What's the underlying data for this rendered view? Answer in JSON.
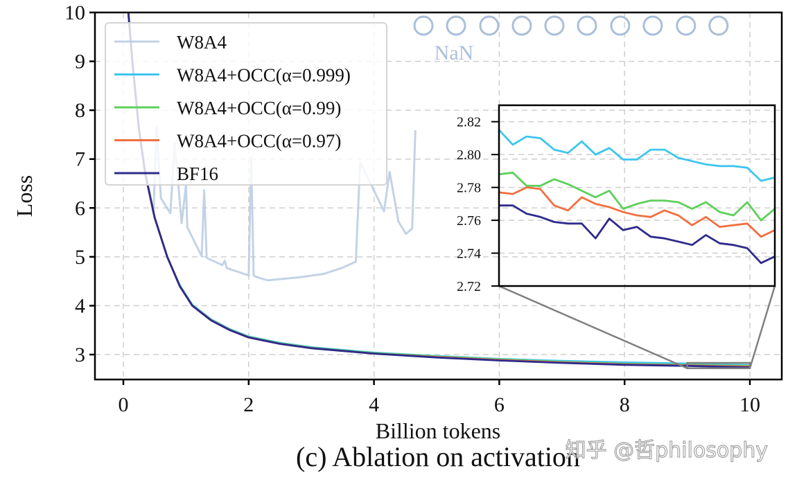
{
  "chart_data": [
    {
      "type": "line",
      "caption": "(c) Ablation on activation",
      "xlabel": "Billion tokens",
      "ylabel": "Loss",
      "xlim": [
        -0.45,
        10.5
      ],
      "ylim": [
        2.49,
        10
      ],
      "xticks": [
        "0",
        "2",
        "4",
        "6",
        "8",
        "10"
      ],
      "yticks": [
        "3",
        "4",
        "5",
        "6",
        "7",
        "8",
        "9",
        "10"
      ],
      "grid": true,
      "legend_position": "top-left",
      "nan_label": "NaN",
      "nan_markers": {
        "x": [
          4.79,
          5.31,
          5.84,
          6.36,
          6.88,
          7.4,
          7.93,
          8.45,
          8.98,
          9.5
        ],
        "y": 9.73,
        "color": "#a9bfda"
      },
      "series": [
        {
          "name": "W8A4",
          "color": "#b8cbe2",
          "points": [
            [
              0.08,
              10
            ],
            [
              0.15,
              8.9
            ],
            [
              0.25,
              7.6
            ],
            [
              0.35,
              6.7
            ],
            [
              0.42,
              6.3
            ],
            [
              0.48,
              5.89
            ],
            [
              0.53,
              7.66
            ],
            [
              0.6,
              6.2
            ],
            [
              0.75,
              5.89
            ],
            [
              0.82,
              7.32
            ],
            [
              0.93,
              5.69
            ],
            [
              1.0,
              6.47
            ],
            [
              1.02,
              5.61
            ],
            [
              1.25,
              5.01
            ],
            [
              1.29,
              6.36
            ],
            [
              1.33,
              4.98
            ],
            [
              1.58,
              4.83
            ],
            [
              1.62,
              4.92
            ],
            [
              1.65,
              4.77
            ],
            [
              2.0,
              4.62
            ],
            [
              2.04,
              7.04
            ],
            [
              2.08,
              4.62
            ],
            [
              2.12,
              4.59
            ],
            [
              2.3,
              4.52
            ],
            [
              2.8,
              4.58
            ],
            [
              3.2,
              4.65
            ],
            [
              3.48,
              4.77
            ],
            [
              3.71,
              4.9
            ],
            [
              3.78,
              6.93
            ],
            [
              3.92,
              6.57
            ],
            [
              4.16,
              5.93
            ],
            [
              4.25,
              6.74
            ],
            [
              4.39,
              5.72
            ],
            [
              4.51,
              5.47
            ],
            [
              4.61,
              5.58
            ],
            [
              4.66,
              7.59
            ]
          ]
        },
        {
          "name": "W8A4+OCC(α=0.999)",
          "color": "#3ec5ee",
          "points": [
            [
              0.08,
              10
            ],
            [
              0.15,
              8.9
            ],
            [
              0.25,
              7.6
            ],
            [
              0.35,
              6.7
            ],
            [
              0.5,
              5.8
            ],
            [
              0.7,
              5.0
            ],
            [
              0.9,
              4.42
            ],
            [
              1.1,
              4.02
            ],
            [
              1.4,
              3.72
            ],
            [
              1.7,
              3.52
            ],
            [
              2.0,
              3.37
            ],
            [
              2.5,
              3.24
            ],
            [
              3,
              3.15
            ],
            [
              4,
              3.04
            ],
            [
              5,
              2.97
            ],
            [
              6,
              2.91
            ],
            [
              7,
              2.87
            ],
            [
              8,
              2.84
            ],
            [
              9,
              2.815
            ],
            [
              10,
              2.786
            ]
          ]
        },
        {
          "name": "W8A4+OCC(α=0.99)",
          "color": "#5dd05a",
          "points": [
            [
              0.08,
              10
            ],
            [
              0.15,
              8.9
            ],
            [
              0.25,
              7.6
            ],
            [
              0.35,
              6.7
            ],
            [
              0.5,
              5.8
            ],
            [
              0.7,
              5.0
            ],
            [
              0.9,
              4.41
            ],
            [
              1.1,
              4.01
            ],
            [
              1.4,
              3.71
            ],
            [
              1.7,
              3.51
            ],
            [
              2.0,
              3.36
            ],
            [
              2.5,
              3.23
            ],
            [
              3,
              3.14
            ],
            [
              4,
              3.03
            ],
            [
              5,
              2.96
            ],
            [
              6,
              2.9
            ],
            [
              7,
              2.85
            ],
            [
              8,
              2.81
            ],
            [
              9,
              2.788
            ],
            [
              10,
              2.767
            ]
          ]
        },
        {
          "name": "W8A4+OCC(α=0.97)",
          "color": "#f07040",
          "points": [
            [
              0.08,
              10
            ],
            [
              0.15,
              8.9
            ],
            [
              0.25,
              7.6
            ],
            [
              0.35,
              6.7
            ],
            [
              0.5,
              5.8
            ],
            [
              0.7,
              5.0
            ],
            [
              0.9,
              4.4
            ],
            [
              1.1,
              4.0
            ],
            [
              1.4,
              3.7
            ],
            [
              1.7,
              3.5
            ],
            [
              2.0,
              3.35
            ],
            [
              2.5,
              3.22
            ],
            [
              3,
              3.13
            ],
            [
              4,
              3.02
            ],
            [
              5,
              2.95
            ],
            [
              6,
              2.89
            ],
            [
              7,
              2.84
            ],
            [
              8,
              2.8
            ],
            [
              9,
              2.777
            ],
            [
              10,
              2.754
            ]
          ]
        },
        {
          "name": "BF16",
          "color": "#2e2a8c",
          "points": [
            [
              0.08,
              10
            ],
            [
              0.15,
              8.9
            ],
            [
              0.25,
              7.6
            ],
            [
              0.35,
              6.7
            ],
            [
              0.5,
              5.8
            ],
            [
              0.7,
              5.0
            ],
            [
              0.9,
              4.4
            ],
            [
              1.1,
              4.0
            ],
            [
              1.4,
              3.7
            ],
            [
              1.7,
              3.5
            ],
            [
              2.0,
              3.35
            ],
            [
              2.5,
              3.22
            ],
            [
              3,
              3.13
            ],
            [
              4,
              3.02
            ],
            [
              5,
              2.94
            ],
            [
              6,
              2.88
            ],
            [
              7,
              2.83
            ],
            [
              8,
              2.79
            ],
            [
              9,
              2.769
            ],
            [
              10,
              2.738
            ]
          ]
        }
      ]
    },
    {
      "type": "line",
      "role": "inset zoom",
      "xlim": [
        9,
        10
      ],
      "ylim": [
        2.72,
        2.83
      ],
      "yticks": [
        "2.72",
        "2.74",
        "2.76",
        "2.78",
        "2.80",
        "2.82"
      ],
      "grid": true,
      "x": [
        9.0,
        9.05,
        9.1,
        9.15,
        9.2,
        9.25,
        9.3,
        9.35,
        9.4,
        9.45,
        9.5,
        9.55,
        9.6,
        9.65,
        9.7,
        9.75,
        9.8,
        9.85,
        9.9,
        9.95,
        10.0
      ],
      "series": [
        {
          "name": "W8A4+OCC(α=0.999)",
          "color": "#3ec5ee",
          "values": [
            2.815,
            2.806,
            2.811,
            2.81,
            2.803,
            2.801,
            2.808,
            2.8,
            2.804,
            2.797,
            2.797,
            2.803,
            2.803,
            2.798,
            2.796,
            2.794,
            2.793,
            2.793,
            2.792,
            2.784,
            2.786
          ]
        },
        {
          "name": "W8A4+OCC(α=0.99)",
          "color": "#5dd05a",
          "values": [
            2.788,
            2.789,
            2.781,
            2.781,
            2.785,
            2.782,
            2.778,
            2.774,
            2.778,
            2.767,
            2.77,
            2.772,
            2.772,
            2.771,
            2.767,
            2.771,
            2.765,
            2.763,
            2.771,
            2.76,
            2.767
          ]
        },
        {
          "name": "W8A4+OCC(α=0.97)",
          "color": "#f07040",
          "values": [
            2.777,
            2.776,
            2.78,
            2.779,
            2.769,
            2.766,
            2.774,
            2.77,
            2.768,
            2.765,
            2.763,
            2.762,
            2.766,
            2.763,
            2.757,
            2.762,
            2.756,
            2.757,
            2.758,
            2.75,
            2.754
          ]
        },
        {
          "name": "BF16",
          "color": "#2e2a8c",
          "values": [
            2.769,
            2.769,
            2.764,
            2.762,
            2.759,
            2.758,
            2.758,
            2.749,
            2.761,
            2.754,
            2.756,
            2.75,
            2.749,
            2.747,
            2.745,
            2.751,
            2.746,
            2.745,
            2.743,
            2.734,
            2.738
          ]
        }
      ]
    }
  ],
  "watermark": "知乎 @哲philosophy"
}
